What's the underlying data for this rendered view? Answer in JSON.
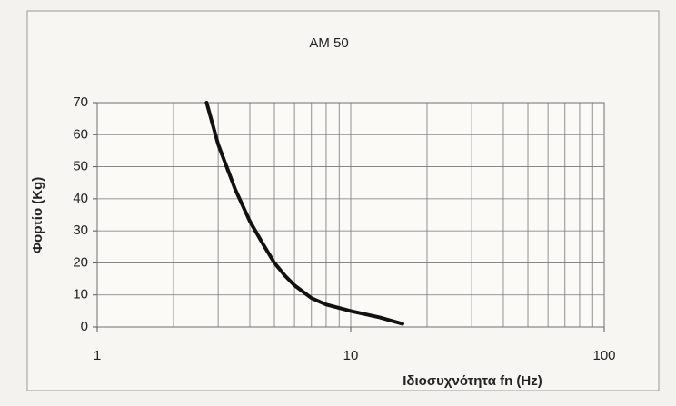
{
  "chart_data": {
    "type": "line",
    "title": "AM 50",
    "x_label": "Ιδιοσυχνότητα fn   (Hz)",
    "y_label": "Φορτίο  (Kg)",
    "x_scale": "log",
    "grid": true,
    "xlim": [
      1,
      100
    ],
    "xticks": [
      1,
      10,
      100
    ],
    "xgrid_minor": [
      2,
      3,
      4,
      5,
      6,
      7,
      8,
      9,
      20,
      30,
      40,
      50,
      60,
      70,
      80,
      90
    ],
    "ylim": [
      0,
      70
    ],
    "yticks": [
      0,
      10,
      20,
      30,
      40,
      50,
      60,
      70
    ],
    "series": [
      {
        "name": "AM 50",
        "color": "#111111",
        "x": [
          2.7,
          3,
          3.5,
          4,
          4.5,
          5,
          5.5,
          6,
          7,
          8,
          10,
          13,
          16
        ],
        "values": [
          70,
          57,
          43,
          33,
          26,
          20,
          16,
          13,
          9,
          7,
          5,
          3,
          1
        ]
      }
    ]
  }
}
